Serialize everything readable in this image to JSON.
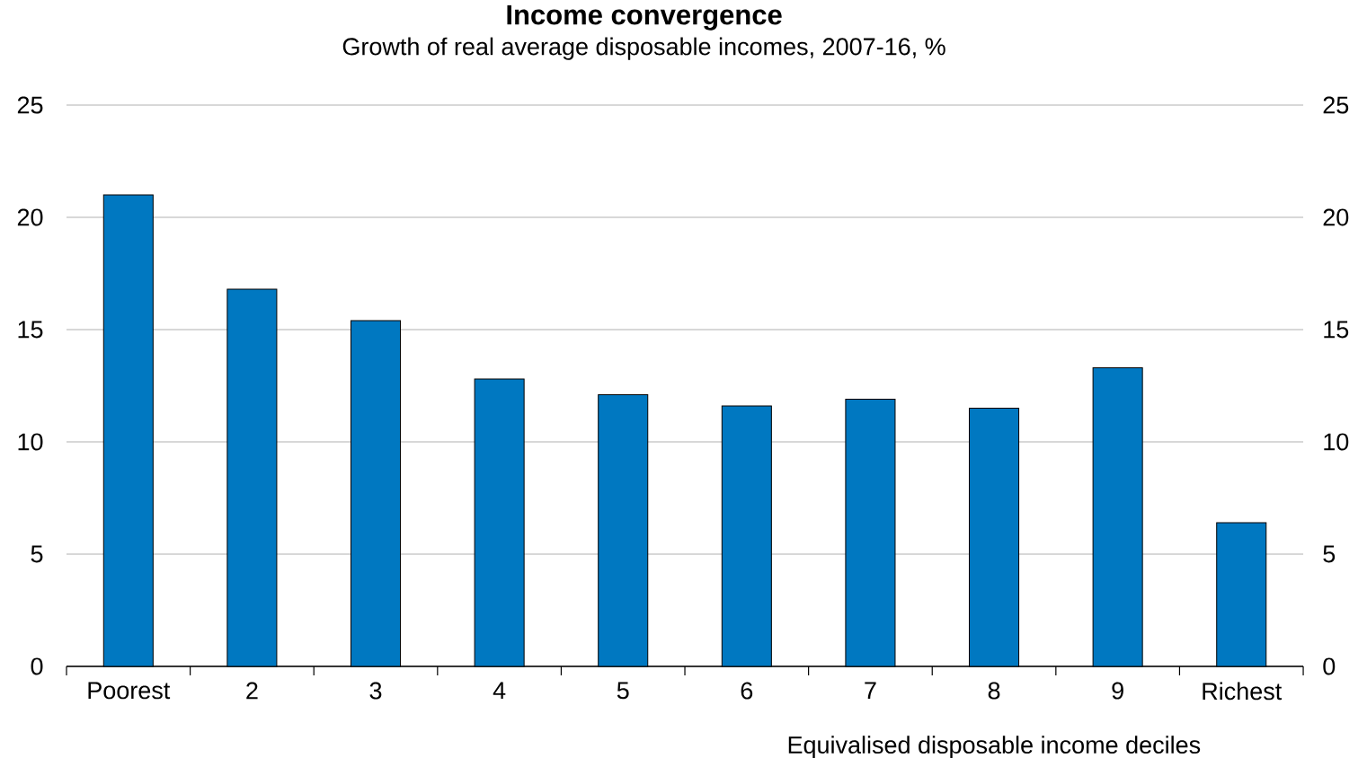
{
  "chart_data": {
    "type": "bar",
    "title": "Income convergence",
    "subtitle": "Growth of real average disposable incomes, 2007-16, %",
    "xlabel": "Equivalised disposable income deciles",
    "categories": [
      "Poorest",
      "2",
      "3",
      "4",
      "5",
      "6",
      "7",
      "8",
      "9",
      "Richest"
    ],
    "values": [
      21.0,
      16.8,
      15.4,
      12.8,
      12.1,
      11.6,
      11.9,
      11.5,
      13.3,
      6.4
    ],
    "color": "#0078c1",
    "ylim": [
      0,
      25
    ],
    "yticks": [
      0,
      5,
      10,
      15,
      20,
      25
    ],
    "y2lim": [
      0,
      25
    ],
    "y2ticks": [
      0,
      5,
      10,
      15,
      20,
      25
    ],
    "grid": "y"
  }
}
